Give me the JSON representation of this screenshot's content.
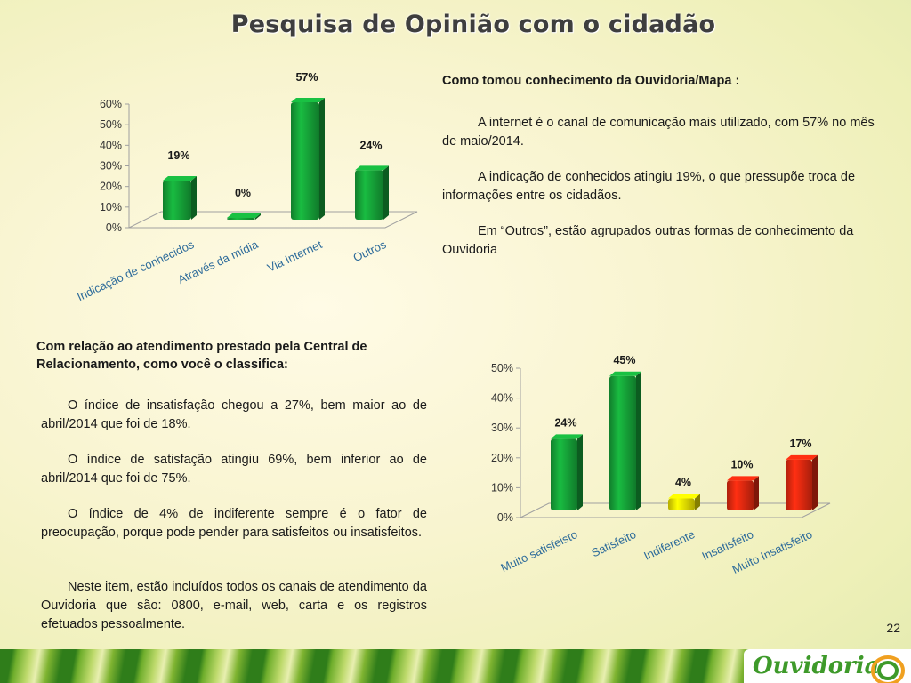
{
  "title": "Pesquisa de Opinião com o cidadão",
  "section1": {
    "heading": "Como tomou conhecimento da Ouvidoria/Mapa :",
    "paragraphs": [
      "A internet é o canal de comunicação mais utilizado, com 57% no mês de maio/2014.",
      "A indicação de conhecidos atingiu 19%, o que pressupõe troca de informações entre os cidadãos.",
      "Em “Outros”, estão agrupados outras formas de conhecimento da Ouvidoria"
    ]
  },
  "section2": {
    "heading": "Com relação ao atendimento prestado pela Central de Relacionamento, como você o classifica:",
    "paragraphs": [
      "O índice de insatisfação chegou a 27%, bem maior ao de abril/2014 que foi de 18%.",
      "O índice de satisfação atingiu 69%, bem inferior ao de abril/2014 que foi de 75%.",
      "O índice de 4% de indiferente sempre é o fator de preocupação, porque pode pender para satisfeitos ou insatisfeitos.",
      "Neste item, estão incluídos todos os canais de atendimento da Ouvidoria que são:  0800, e-mail, web, carta e os registros efetuados pessoalmente."
    ]
  },
  "page_number": "22",
  "logo_text": "Ouvidoria",
  "chart_data": [
    {
      "type": "bar",
      "categories": [
        "Indicação de conhecidos",
        "Através da mídia",
        "Via Internet",
        "Outros"
      ],
      "values": [
        19,
        0,
        57,
        24
      ],
      "value_labels": [
        "19%",
        "0%",
        "57%",
        "24%"
      ],
      "yticks": [
        "0%",
        "10%",
        "20%",
        "30%",
        "40%",
        "50%",
        "60%"
      ],
      "ylim": [
        0,
        60
      ],
      "colors": [
        "#16a83a",
        "#16a83a",
        "#16a83a",
        "#16a83a"
      ]
    },
    {
      "type": "bar",
      "categories": [
        "Muito satisfeisto",
        "Satisfeito",
        "Indiferente",
        "Insatisfeito",
        "Muito Insatisfeito"
      ],
      "values": [
        24,
        45,
        4,
        10,
        17
      ],
      "value_labels": [
        "24%",
        "45%",
        "4%",
        "10%",
        "17%"
      ],
      "yticks": [
        "0%",
        "10%",
        "20%",
        "30%",
        "40%",
        "50%"
      ],
      "ylim": [
        0,
        50
      ],
      "colors": [
        "#16a83a",
        "#16a83a",
        "#f2e600",
        "#e62a10",
        "#e62a10"
      ]
    }
  ]
}
